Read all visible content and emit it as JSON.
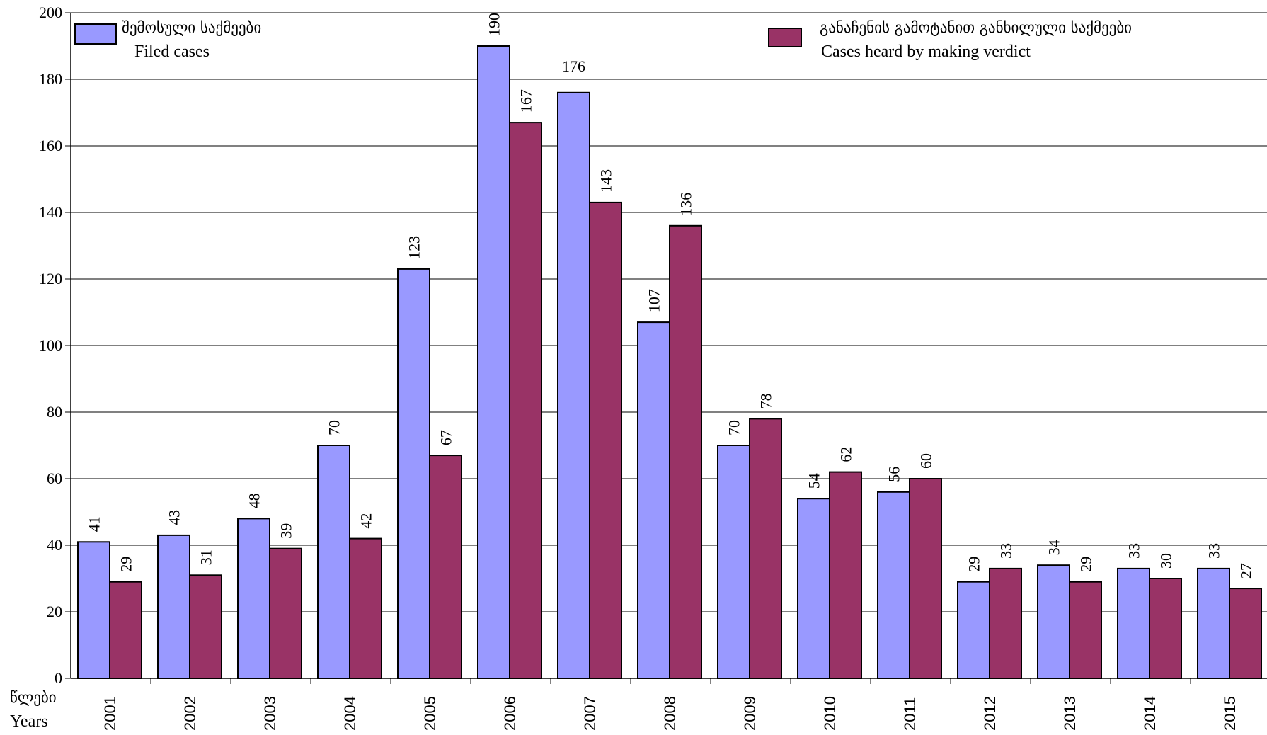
{
  "chart_data": {
    "type": "bar",
    "title": "",
    "xlabel_ka": "წლები",
    "xlabel": "Years",
    "ylabel": "",
    "ylim": [
      0,
      200
    ],
    "yticks": [
      0,
      20,
      40,
      60,
      80,
      100,
      120,
      140,
      160,
      180,
      200
    ],
    "grid": true,
    "categories": [
      "2001",
      "2002",
      "2003",
      "2004",
      "2005",
      "2006",
      "2007",
      "2008",
      "2009",
      "2010",
      "2011",
      "2012",
      "2013",
      "2014",
      "2015"
    ],
    "series": [
      {
        "name": "Filed cases",
        "name_ka": "შემოსული საქმეები",
        "color": "#9999ff",
        "values": [
          41,
          43,
          48,
          70,
          123,
          190,
          176,
          107,
          70,
          54,
          56,
          29,
          34,
          33,
          33
        ]
      },
      {
        "name": "Cases heard by making verdict",
        "name_ka": "განაჩენის გამოტანით განხილული საქმეები",
        "color": "#993366",
        "values": [
          29,
          31,
          39,
          42,
          67,
          167,
          143,
          136,
          78,
          62,
          60,
          33,
          29,
          30,
          27
        ]
      }
    ]
  }
}
